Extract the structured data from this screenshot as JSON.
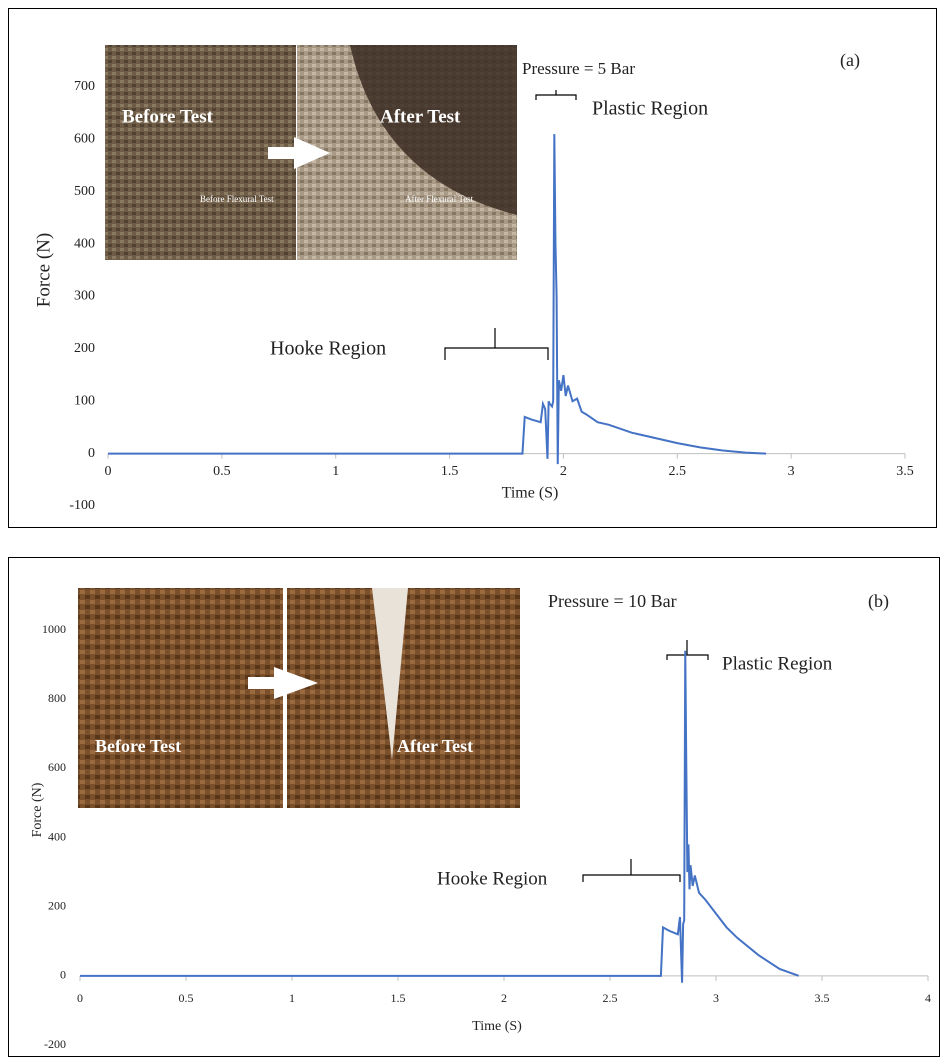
{
  "chart_data": [
    {
      "type": "line",
      "panel_label": "(a)",
      "x_label": "Time (S)",
      "y_label": "Force (N)",
      "annotations": [
        "Pressure = 5 Bar",
        "Plastic Region",
        "Hooke Region"
      ],
      "inset_labels": [
        "Before Test",
        "After Test",
        "Before Flexural Test",
        "After Flexural Test"
      ],
      "x": [
        0,
        0.5,
        1,
        1.5,
        1.82,
        1.83,
        1.86,
        1.9,
        1.91,
        1.92,
        1.93,
        1.935,
        1.94,
        1.95,
        1.955,
        1.96,
        1.965,
        1.97,
        1.975,
        1.98,
        1.99,
        2.0,
        2.01,
        2.02,
        2.04,
        2.06,
        2.08,
        2.1,
        2.15,
        2.2,
        2.3,
        2.4,
        2.5,
        2.6,
        2.7,
        2.8,
        2.89
      ],
      "series": [
        {
          "color": "#4472c4",
          "values": [
            0,
            0,
            0,
            0,
            0,
            70,
            65,
            60,
            95,
            85,
            -10,
            100,
            95,
            90,
            100,
            610,
            400,
            300,
            -20,
            140,
            120,
            150,
            110,
            130,
            100,
            105,
            80,
            75,
            60,
            55,
            40,
            30,
            20,
            12,
            6,
            2,
            0
          ]
        }
      ],
      "xlim": [
        0,
        3.5
      ],
      "xticks": [
        0,
        0.5,
        1,
        1.5,
        2,
        2.5,
        3,
        3.5
      ],
      "ylim": [
        -100,
        700
      ],
      "yticks": [
        -100,
        0,
        100,
        200,
        300,
        400,
        500,
        600,
        700
      ],
      "grid": false
    },
    {
      "type": "line",
      "panel_label": "(b)",
      "x_label": "Time (S)",
      "y_label": "Force (N)",
      "annotations": [
        "Pressure = 10 Bar",
        "Plastic Region",
        "Hooke Region"
      ],
      "inset_labels": [
        "Before Test",
        "After Test"
      ],
      "x": [
        0,
        1,
        2,
        2.74,
        2.75,
        2.78,
        2.82,
        2.83,
        2.84,
        2.845,
        2.85,
        2.855,
        2.86,
        2.865,
        2.87,
        2.875,
        2.88,
        2.89,
        2.9,
        2.92,
        2.95,
        3.0,
        3.05,
        3.1,
        3.2,
        3.3,
        3.39
      ],
      "series": [
        {
          "color": "#4472c4",
          "values": [
            0,
            0,
            0,
            0,
            140,
            130,
            120,
            170,
            -20,
            150,
            160,
            940,
            600,
            300,
            380,
            250,
            320,
            260,
            290,
            240,
            220,
            180,
            140,
            110,
            60,
            20,
            0
          ]
        }
      ],
      "xlim": [
        0,
        4
      ],
      "xticks": [
        0,
        0.5,
        1,
        1.5,
        2,
        2.5,
        3,
        3.5,
        4
      ],
      "ylim": [
        -200,
        1000
      ],
      "yticks": [
        -200,
        0,
        200,
        400,
        600,
        800,
        1000
      ],
      "grid": false
    }
  ]
}
